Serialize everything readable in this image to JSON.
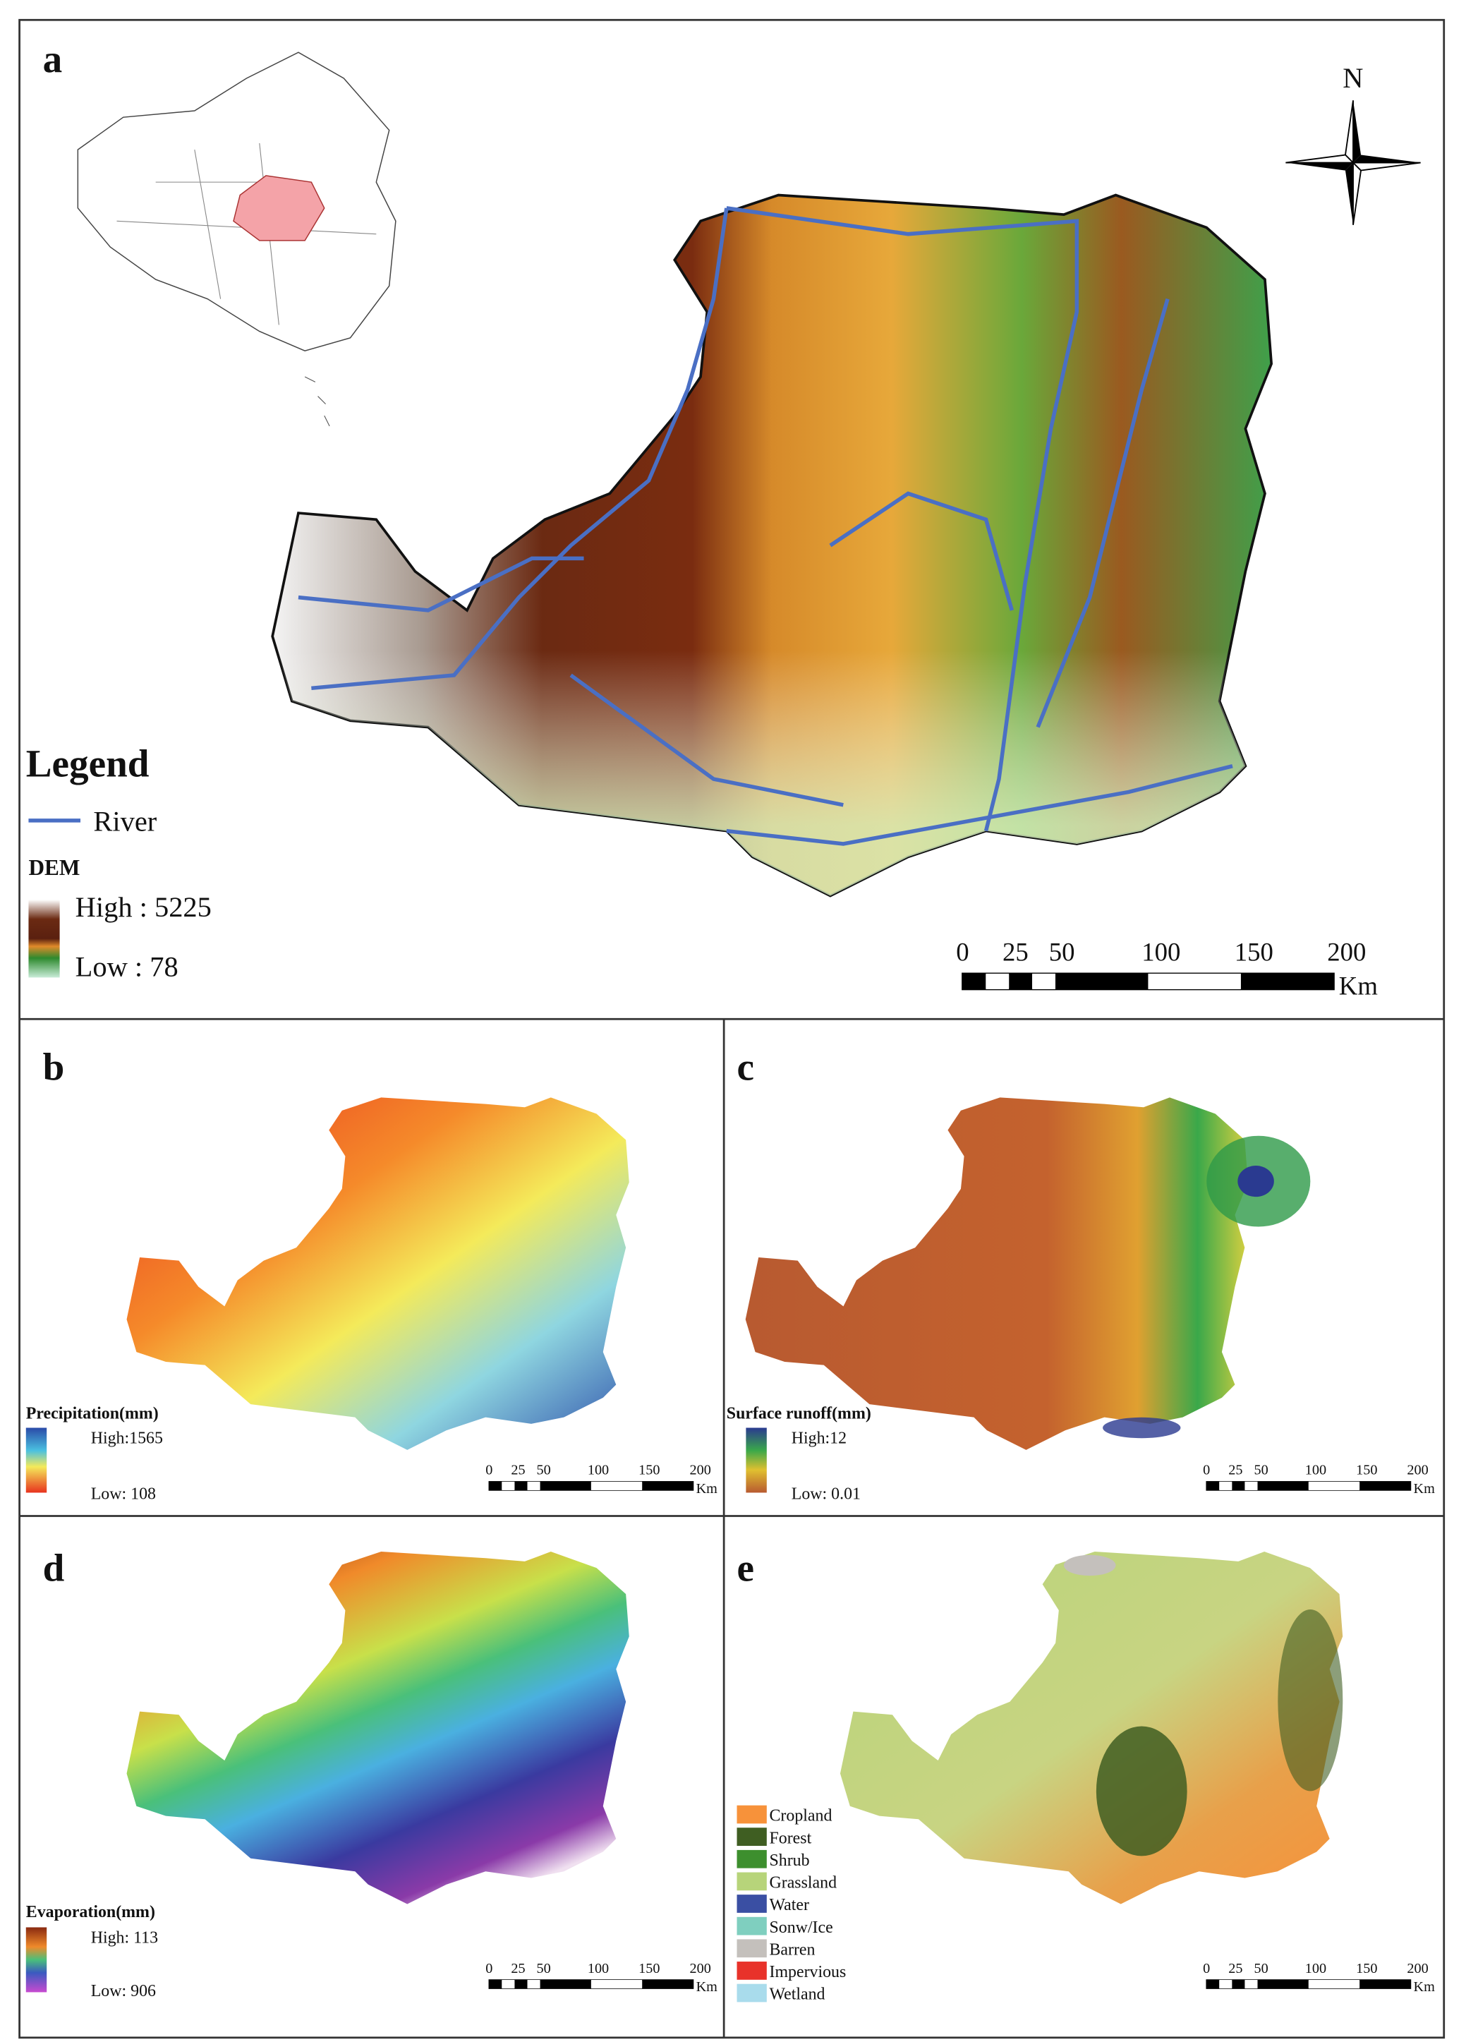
{
  "panels": {
    "a": {
      "label": "a",
      "north": "N",
      "legend_title": "Legend",
      "river_label": "River",
      "dem_title": "DEM",
      "dem_high": "High : 5225",
      "dem_low": "Low : 78",
      "scale_ticks": [
        "0",
        "25",
        "50",
        "100",
        "150",
        "200"
      ],
      "scale_unit": "Km",
      "colors": {
        "river": "#4a6fc4",
        "inset_region": "#f4a3a8"
      }
    },
    "b": {
      "label": "b",
      "legend_title": "Precipitation(mm)",
      "high": "High:1565",
      "low": "Low: 108",
      "scale_ticks": [
        "0",
        "25",
        "50",
        "100",
        "150",
        "200"
      ],
      "scale_unit": "Km"
    },
    "c": {
      "label": "c",
      "legend_title": "Surface runoff(mm)",
      "high": "High:12",
      "low": "Low: 0.01",
      "scale_ticks": [
        "0",
        "25",
        "50",
        "100",
        "150",
        "200"
      ],
      "scale_unit": "Km"
    },
    "d": {
      "label": "d",
      "legend_title": "Evaporation(mm)",
      "high": "High: 113",
      "low": "Low:  906",
      "scale_ticks": [
        "0",
        "25",
        "50",
        "100",
        "150",
        "200"
      ],
      "scale_unit": "Km"
    },
    "e": {
      "label": "e",
      "classes": [
        {
          "name": "Cropland",
          "color": "#f7923a"
        },
        {
          "name": "Forest",
          "color": "#3f5e22"
        },
        {
          "name": "Shrub",
          "color": "#3d8f2e"
        },
        {
          "name": "Grassland",
          "color": "#b7d47a"
        },
        {
          "name": "Water",
          "color": "#3a4fa3"
        },
        {
          "name": "Sonw/Ice",
          "color": "#7fcfbf"
        },
        {
          "name": "Barren",
          "color": "#c4c0bc"
        },
        {
          "name": "Impervious",
          "color": "#e8322a"
        },
        {
          "name": "Wetland",
          "color": "#a9dcec"
        }
      ],
      "scale_ticks": [
        "0",
        "25",
        "50",
        "100",
        "150",
        "200"
      ],
      "scale_unit": "Km"
    }
  }
}
